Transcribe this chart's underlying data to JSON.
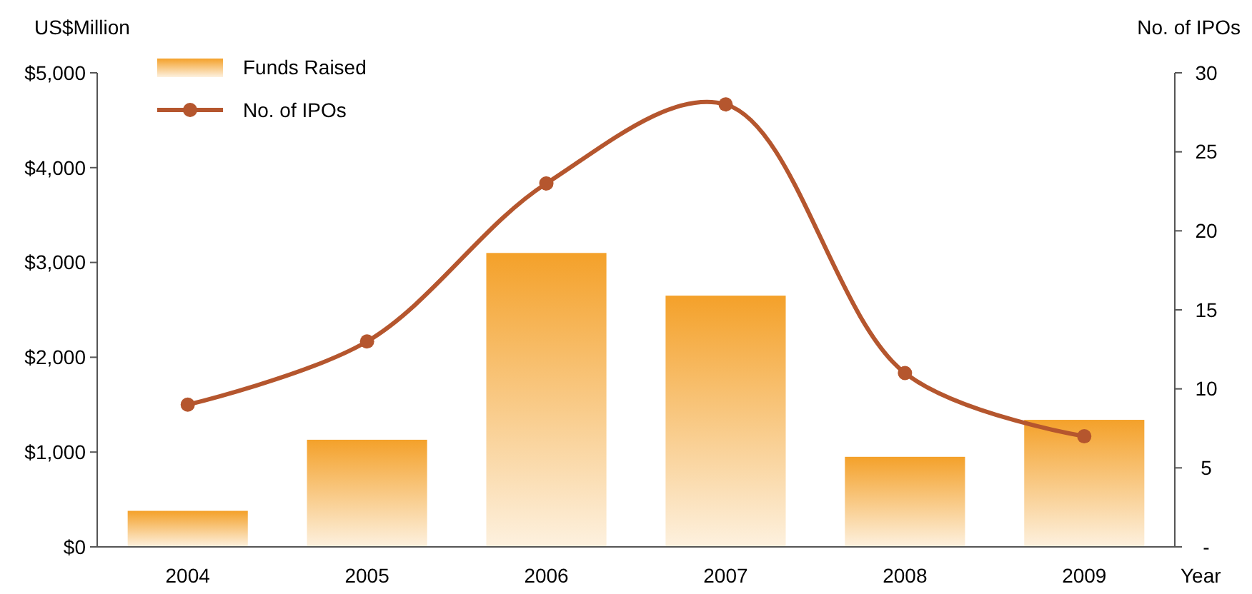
{
  "chart_data": {
    "type": "bar",
    "xlabel": "Year",
    "ylabel": "US$Million",
    "y2label": "No. of IPOs",
    "categories": [
      "2004",
      "2005",
      "2006",
      "2007",
      "2008",
      "2009"
    ],
    "series": [
      {
        "name": "Funds Raised",
        "color": "#f4a12a",
        "values": [
          380,
          1130,
          3100,
          2650,
          950,
          1340
        ]
      },
      {
        "name": "No. of IPOs",
        "type": "line",
        "axis": "y2",
        "color": "#b5562e",
        "values": [
          9,
          13,
          23,
          28,
          11,
          7
        ]
      }
    ],
    "ylim": [
      0,
      5000
    ],
    "yticks": [
      {
        "value": 0,
        "label": "$0"
      },
      {
        "value": 1000,
        "label": "$1,000"
      },
      {
        "value": 2000,
        "label": "$2,000"
      },
      {
        "value": 3000,
        "label": "$3,000"
      },
      {
        "value": 4000,
        "label": "$4,000"
      },
      {
        "value": 5000,
        "label": "$5,000"
      }
    ],
    "y2lim": [
      0,
      30
    ],
    "y2ticks": [
      {
        "value": 0,
        "label": "-"
      },
      5,
      10,
      15,
      20,
      25,
      30
    ],
    "grid": false,
    "legend": "top left",
    "marker": "circle",
    "line_style": "solid"
  }
}
